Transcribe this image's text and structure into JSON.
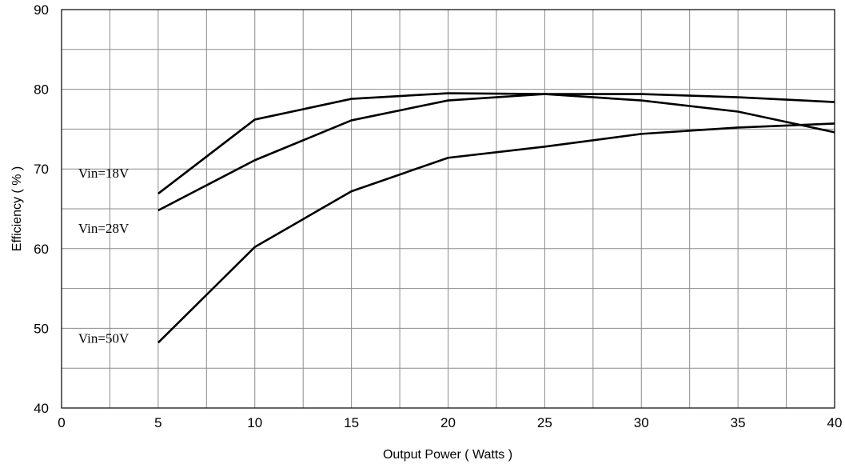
{
  "chart_data": {
    "type": "line",
    "title": "",
    "xlabel": "Output Power ( Watts )",
    "ylabel": "Efficiency ( % )",
    "xlim": [
      0,
      40
    ],
    "ylim": [
      40,
      90
    ],
    "x_ticks": [
      0,
      5,
      10,
      15,
      20,
      25,
      30,
      35,
      40
    ],
    "y_ticks": [
      40,
      50,
      60,
      70,
      80,
      90
    ],
    "x_minor_step": 2.5,
    "y_minor_step": 5,
    "grid": true,
    "x": [
      5,
      10,
      15,
      20,
      25,
      30,
      35,
      40
    ],
    "series": [
      {
        "name": "Vin=18V",
        "values": [
          66.9,
          76.2,
          78.8,
          79.5,
          79.4,
          79.4,
          79.0,
          78.4
        ]
      },
      {
        "name": "Vin=28V",
        "values": [
          64.8,
          71.1,
          76.1,
          78.6,
          79.4,
          78.6,
          77.2,
          74.6
        ]
      },
      {
        "name": "Vin=50V",
        "values": [
          48.2,
          60.2,
          67.2,
          71.4,
          72.8,
          74.4,
          75.2,
          75.7
        ]
      }
    ],
    "line_color": "#000000",
    "grid_color": "#8c8c8c"
  }
}
